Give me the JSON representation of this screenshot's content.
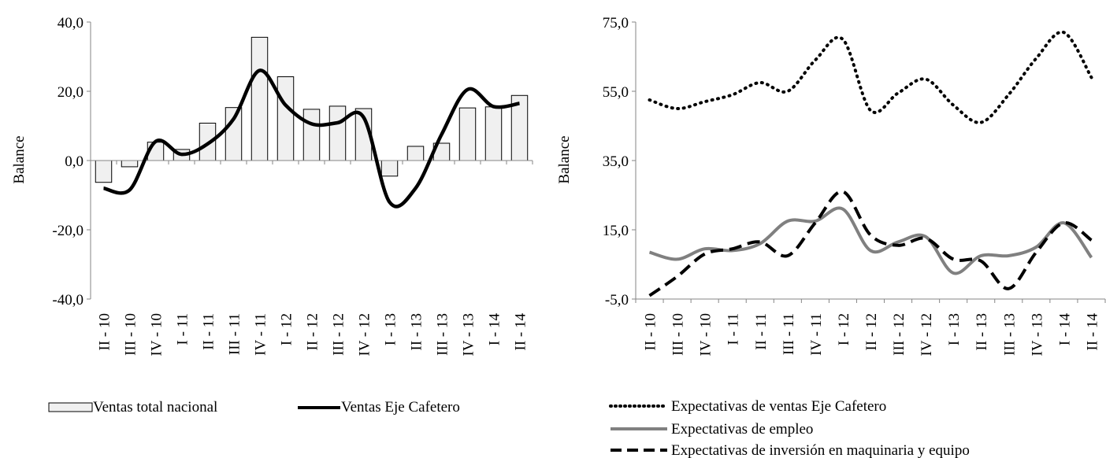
{
  "chart_data": [
    {
      "type": "bar",
      "ylabel": "Balance",
      "ylim": [
        -40,
        40
      ],
      "yticks": [
        "40,0",
        "20,0",
        "0,0",
        "-20,0",
        "-40,0"
      ],
      "categories": [
        "II - 10",
        "III - 10",
        "IV - 10",
        "I - 11",
        "II - 11",
        "III - 11",
        "IV - 11",
        "I - 12",
        "II - 12",
        "III - 12",
        "IV - 12",
        "I - 13",
        "II - 13",
        "III - 13",
        "IV - 13",
        "I - 14",
        "II - 14"
      ],
      "series": [
        {
          "name": "Ventas total nacional",
          "kind": "bar",
          "color": "#f0f0f0",
          "values": [
            -6.3,
            -1.8,
            5.3,
            3.2,
            10.8,
            15.3,
            35.6,
            24.2,
            14.8,
            15.7,
            15.0,
            -4.5,
            4.1,
            5.0,
            15.2,
            15.5,
            18.8
          ]
        },
        {
          "name": "Ventas Eje Cafetero",
          "kind": "line",
          "color": "#000000",
          "values": [
            -8.0,
            -8.5,
            5.5,
            1.8,
            4.8,
            12.0,
            26.0,
            16.0,
            10.6,
            10.9,
            12.5,
            -12.0,
            -8.0,
            7.5,
            20.5,
            15.6,
            16.5
          ]
        }
      ],
      "legend_position": "bottom"
    },
    {
      "type": "line",
      "ylabel": "Balance",
      "ylim": [
        -5,
        75
      ],
      "yticks": [
        "75,0",
        "55,0",
        "35,0",
        "15,0",
        "-5,0"
      ],
      "categories": [
        "II - 10",
        "III - 10",
        "IV - 10",
        "I - 11",
        "II - 11",
        "III - 11",
        "IV - 11",
        "I - 12",
        "II - 12",
        "III - 12",
        "IV - 12",
        "I - 13",
        "II - 13",
        "III - 13",
        "IV - 13",
        "I - 14",
        "II - 14"
      ],
      "series": [
        {
          "name": "Expectativas de ventas Eje Cafetero",
          "style": "dotted",
          "color": "#000000",
          "values": [
            52.5,
            50.0,
            52.0,
            54.0,
            57.5,
            55.0,
            64.0,
            70.0,
            49.5,
            54.5,
            58.5,
            51.0,
            46.0,
            54.0,
            64.5,
            72.0,
            59.0
          ]
        },
        {
          "name": "Expectativas de empleo",
          "style": "solid",
          "color": "#808080",
          "values": [
            8.5,
            6.5,
            9.5,
            9.0,
            11.0,
            17.5,
            17.5,
            21.0,
            9.0,
            11.5,
            13.0,
            2.5,
            7.5,
            7.5,
            10.0,
            17.0,
            7.0
          ]
        },
        {
          "name": "Expectativas de inversión en maquinaria y equipo",
          "style": "dashed",
          "color": "#000000",
          "values": [
            -4.0,
            1.5,
            8.0,
            9.5,
            11.5,
            7.5,
            17.0,
            26.0,
            13.5,
            10.5,
            12.5,
            6.5,
            6.0,
            -2.0,
            8.5,
            17.0,
            12.0
          ]
        }
      ],
      "legend_position": "bottom"
    }
  ]
}
